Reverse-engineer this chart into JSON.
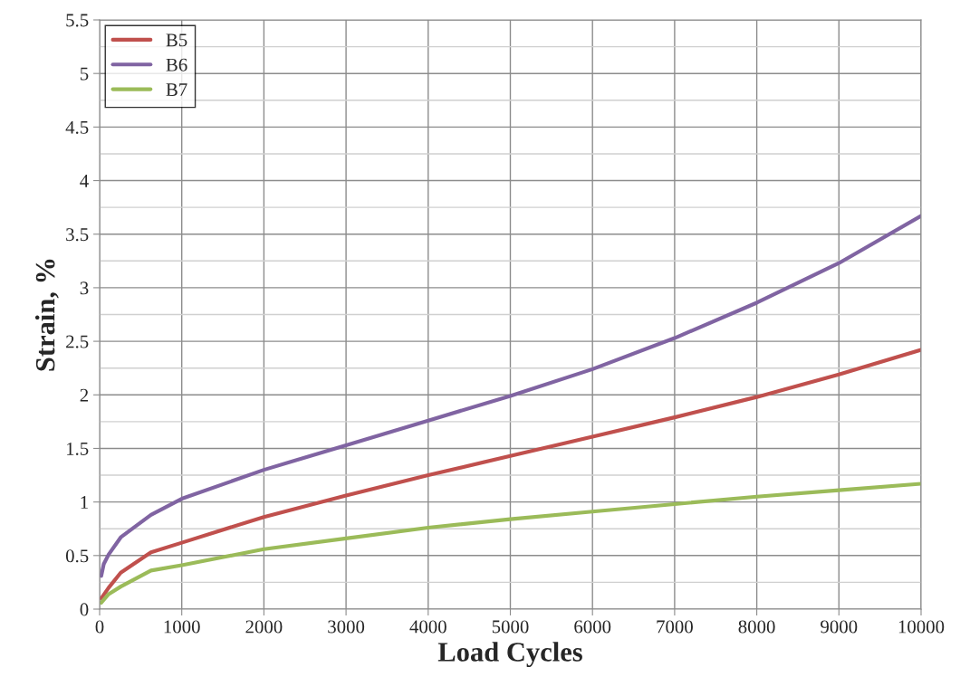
{
  "chart_data": {
    "type": "line",
    "xlabel": "Load Cycles",
    "ylabel": "Strain, %",
    "xlim": [
      0,
      10000
    ],
    "xticks": [
      0,
      1000,
      2000,
      3000,
      4000,
      5000,
      6000,
      7000,
      8000,
      9000,
      10000
    ],
    "ylim": [
      0,
      5.5
    ],
    "yticks": [
      0,
      0.5,
      1,
      1.5,
      2,
      2.5,
      3,
      3.5,
      4,
      4.5,
      5,
      5.5
    ],
    "grid": true,
    "legend": "top left",
    "marker": "none",
    "line_style": "solid",
    "series": [
      {
        "name": "B5",
        "color": "#c0504d",
        "x": [
          20,
          110,
          257,
          625,
          1000,
          2000,
          3000,
          4000,
          5000,
          6000,
          7000,
          8000,
          9000,
          10000
        ],
        "values": [
          0.1,
          0.2,
          0.34,
          0.53,
          0.62,
          0.86,
          1.06,
          1.25,
          1.43,
          1.61,
          1.79,
          1.98,
          2.19,
          2.42
        ]
      },
      {
        "name": "B6",
        "color": "#8064a2",
        "x": [
          20,
          50,
          110,
          257,
          625,
          1000,
          2000,
          3000,
          4000,
          5000,
          6000,
          7000,
          8000,
          9000,
          10000
        ],
        "values": [
          0.31,
          0.42,
          0.51,
          0.67,
          0.88,
          1.03,
          1.3,
          1.53,
          1.76,
          1.99,
          2.24,
          2.53,
          2.86,
          3.23,
          3.67
        ]
      },
      {
        "name": "B7",
        "color": "#9bbb59",
        "x": [
          20,
          110,
          257,
          625,
          1000,
          2000,
          3000,
          4000,
          5000,
          6000,
          7000,
          8000,
          9000,
          10000
        ],
        "values": [
          0.06,
          0.14,
          0.21,
          0.36,
          0.41,
          0.56,
          0.66,
          0.76,
          0.84,
          0.91,
          0.98,
          1.05,
          1.11,
          1.17
        ]
      }
    ]
  }
}
